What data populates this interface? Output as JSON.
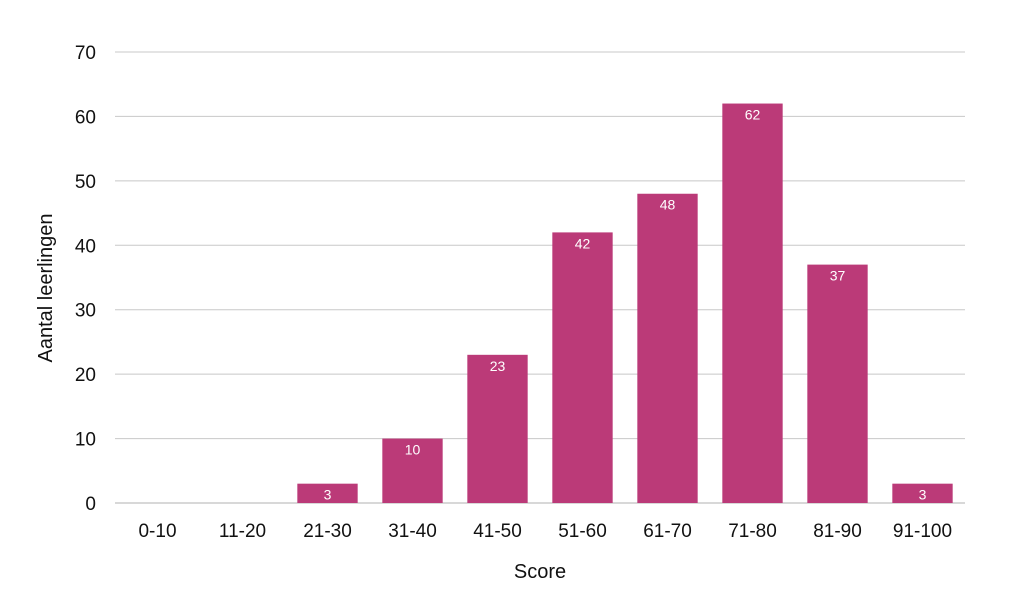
{
  "chart_data": {
    "type": "bar",
    "categories": [
      "0-10",
      "11-20",
      "21-30",
      "31-40",
      "41-50",
      "51-60",
      "61-70",
      "71-80",
      "81-90",
      "91-100"
    ],
    "values": [
      0,
      0,
      3,
      10,
      23,
      42,
      48,
      62,
      37,
      3
    ],
    "data_labels": [
      "",
      "",
      "3",
      "10",
      "23",
      "42",
      "48",
      "62",
      "37",
      "3"
    ],
    "xlabel": "Score",
    "ylabel": "Aantal leerlingen",
    "ylim": [
      0,
      70
    ],
    "yticks": [
      0,
      10,
      20,
      30,
      40,
      50,
      60,
      70
    ],
    "grid": true,
    "bar_color": "#bb3a78"
  }
}
